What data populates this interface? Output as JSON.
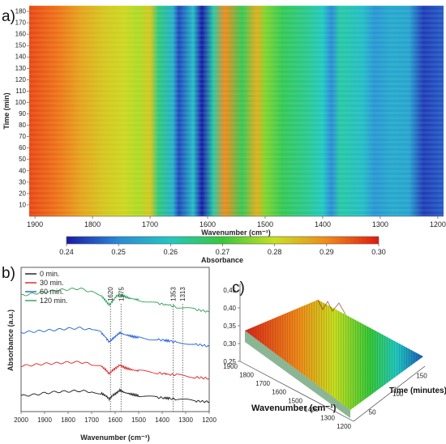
{
  "chart_data": [
    {
      "panel": "a)",
      "type": "heatmap",
      "xlabel": "Wavenumber (cm⁻¹)",
      "ylabel": "Time (min)",
      "xlim": [
        1910,
        1190
      ],
      "ylim": [
        0,
        185
      ],
      "x_ticks": [
        "1900",
        "1800",
        "1700",
        "1600",
        "1500",
        "1400",
        "1300",
        "1200"
      ],
      "y_ticks": [
        "10",
        "20",
        "30",
        "40",
        "50",
        "60",
        "70",
        "80",
        "90",
        "100",
        "110",
        "120",
        "130",
        "140",
        "150",
        "160",
        "170",
        "180"
      ],
      "x_tick_values": [
        1900,
        1800,
        1700,
        1600,
        1500,
        1400,
        1300,
        1200
      ],
      "y_tick_values": [
        10,
        20,
        30,
        40,
        50,
        60,
        70,
        80,
        90,
        100,
        110,
        120,
        130,
        140,
        150,
        160,
        170,
        180
      ],
      "profile": [
        {
          "wn": 1910,
          "abs": 0.296
        },
        {
          "wn": 1860,
          "abs": 0.292
        },
        {
          "wn": 1820,
          "abs": 0.287
        },
        {
          "wn": 1780,
          "abs": 0.283
        },
        {
          "wn": 1745,
          "abs": 0.281
        },
        {
          "wn": 1720,
          "abs": 0.278
        },
        {
          "wn": 1700,
          "abs": 0.283
        },
        {
          "wn": 1685,
          "abs": 0.265
        },
        {
          "wn": 1660,
          "abs": 0.256
        },
        {
          "wn": 1650,
          "abs": 0.244
        },
        {
          "wn": 1625,
          "abs": 0.258
        },
        {
          "wn": 1610,
          "abs": 0.24
        },
        {
          "wn": 1590,
          "abs": 0.262
        },
        {
          "wn": 1570,
          "abs": 0.29
        },
        {
          "wn": 1540,
          "abs": 0.268
        },
        {
          "wn": 1515,
          "abs": 0.286
        },
        {
          "wn": 1500,
          "abs": 0.275
        },
        {
          "wn": 1470,
          "abs": 0.268
        },
        {
          "wn": 1430,
          "abs": 0.264
        },
        {
          "wn": 1400,
          "abs": 0.26
        },
        {
          "wn": 1385,
          "abs": 0.25
        },
        {
          "wn": 1370,
          "abs": 0.262
        },
        {
          "wn": 1330,
          "abs": 0.258
        },
        {
          "wn": 1310,
          "abs": 0.252
        },
        {
          "wn": 1280,
          "abs": 0.255
        },
        {
          "wn": 1250,
          "abs": 0.254
        },
        {
          "wn": 1225,
          "abs": 0.243
        },
        {
          "wn": 1190,
          "abs": 0.246
        }
      ],
      "colorbar": {
        "label": "Absorbance",
        "range": [
          0.24,
          0.3
        ],
        "ticks": [
          "0.24",
          "0.25",
          "0.26",
          "0.27",
          "0.28",
          "0.29",
          "0.30"
        ],
        "tick_values": [
          0.24,
          0.25,
          0.26,
          0.27,
          0.28,
          0.29,
          0.3
        ],
        "colors": [
          "#1a1aa8",
          "#2a8ad8",
          "#22c8c0",
          "#38c83a",
          "#c8e020",
          "#f08a1a",
          "#e21a10"
        ]
      }
    },
    {
      "panel": "b)",
      "type": "line",
      "xlabel": "Wavenumber (cm⁻¹)",
      "ylabel": "Absorbance (a.u.)",
      "xlim": [
        2000,
        1200
      ],
      "x_ticks": [
        "2000",
        "1900",
        "1800",
        "1700",
        "1600",
        "1500",
        "1400",
        "1300",
        "1200"
      ],
      "x_tick_values": [
        2000,
        1900,
        1800,
        1700,
        1600,
        1500,
        1400,
        1300,
        1200
      ],
      "annotations": [
        {
          "label": "1620",
          "wn": 1620
        },
        {
          "label": "1575",
          "wn": 1575
        },
        {
          "label": "1353",
          "wn": 1353
        },
        {
          "label": "1313",
          "wn": 1313
        }
      ],
      "x": [
        2000,
        1950,
        1900,
        1850,
        1800,
        1750,
        1700,
        1660,
        1640,
        1625,
        1610,
        1595,
        1580,
        1560,
        1540,
        1520,
        1500,
        1460,
        1420,
        1390,
        1370,
        1340,
        1300,
        1260,
        1230,
        1200
      ],
      "series": [
        {
          "name": "0 min.",
          "color": "#1a1a1a",
          "values": [
            0.3,
            0.35,
            0.45,
            0.52,
            0.55,
            0.58,
            0.52,
            0.45,
            0.3,
            0.12,
            0.32,
            0.45,
            0.62,
            0.48,
            0.42,
            0.36,
            0.3,
            0.24,
            0.2,
            0.18,
            0.15,
            0.1,
            0.06,
            0.0,
            -0.02,
            -0.05
          ]
        },
        {
          "name": "30 min.",
          "color": "#e02020",
          "values": [
            2.0,
            2.05,
            2.12,
            2.15,
            2.2,
            2.22,
            2.1,
            2.0,
            1.78,
            1.55,
            1.75,
            1.9,
            2.05,
            1.9,
            1.82,
            1.75,
            1.72,
            1.65,
            1.6,
            1.55,
            1.52,
            1.48,
            1.42,
            1.36,
            1.32,
            1.28
          ]
        },
        {
          "name": "60 min.",
          "color": "#1f5fd8",
          "values": [
            3.9,
            3.95,
            4.0,
            4.05,
            4.12,
            4.15,
            4.05,
            3.9,
            3.62,
            3.35,
            3.55,
            3.72,
            3.88,
            3.78,
            3.72,
            3.65,
            3.62,
            3.55,
            3.5,
            3.45,
            3.42,
            3.35,
            3.3,
            3.22,
            3.18,
            3.1
          ]
        },
        {
          "name": "120 min.",
          "color": "#2aa05a",
          "values": [
            6.0,
            6.1,
            6.2,
            6.3,
            6.35,
            6.4,
            6.2,
            6.0,
            5.7,
            5.45,
            5.7,
            5.95,
            6.05,
            5.95,
            5.85,
            5.8,
            5.75,
            5.65,
            5.55,
            5.5,
            5.45,
            5.35,
            5.3,
            5.2,
            5.15,
            5.05
          ]
        }
      ]
    },
    {
      "panel": "c)",
      "type": "area",
      "xlabel": "Wavenumber (cm⁻¹)",
      "ylabel": "Time (minutes)",
      "zlabel": "",
      "x_ticks": [
        "1900",
        "1800",
        "1700",
        "1600",
        "1500",
        "1400",
        "1300",
        "1200"
      ],
      "y_ticks": [
        "50",
        "100",
        "150"
      ],
      "z_ticks": [
        "0,25",
        "0,30",
        "0,35",
        "0,40",
        "0,45"
      ]
    }
  ]
}
